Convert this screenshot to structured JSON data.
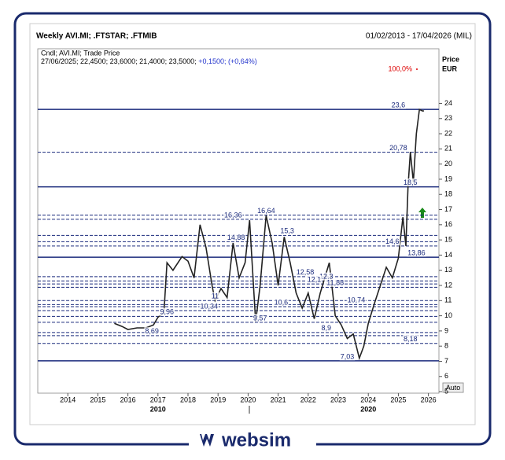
{
  "chart_data": {
    "type": "line",
    "title": "Weekly AVI.MI; .FTSTAR; .FTMIB",
    "date_range": "01/02/2013 - 17/04/2026 (MIL)",
    "legend_line1": "Cndl; AVI.MI; Trade Price",
    "legend_line2": "27/06/2025; 22,4500; 23,6000; 21,4000; 23,5000;",
    "legend_change": "+0,1500; (+0,64%)",
    "axis_label": "Price",
    "axis_unit": "EUR",
    "zoom_label": "100,0%",
    "auto_label": "Auto",
    "decade_labels": [
      {
        "value": 2017.0,
        "label": "2010"
      },
      {
        "value": 2024.0,
        "label": "2020"
      }
    ],
    "xlim": [
      2013,
      2026.35
    ],
    "xticks": [
      2014,
      2015,
      2016,
      2017,
      2018,
      2019,
      2020,
      2021,
      2022,
      2023,
      2024,
      2025,
      2026
    ],
    "ylim": [
      4.9,
      27.6
    ],
    "yticks": [
      5,
      6,
      7,
      8,
      9,
      10,
      11,
      12,
      13,
      14,
      15,
      16,
      17,
      18,
      19,
      20,
      21,
      22,
      23,
      24
    ],
    "series": [
      {
        "name": "AVI.MI",
        "color": "#222222",
        "x": [
          2015.55,
          2015.8,
          2016.0,
          2016.3,
          2016.6,
          2016.85,
          2017.0,
          2017.2,
          2017.3,
          2017.5,
          2017.8,
          2018.0,
          2018.2,
          2018.4,
          2018.6,
          2018.8,
          2018.9,
          2019.1,
          2019.3,
          2019.5,
          2019.7,
          2019.9,
          2020.05,
          2020.25,
          2020.4,
          2020.6,
          2020.8,
          2021.0,
          2021.2,
          2021.4,
          2021.6,
          2021.8,
          2022.0,
          2022.2,
          2022.4,
          2022.7,
          2022.9,
          2023.1,
          2023.3,
          2023.5,
          2023.7,
          2023.85,
          2024.0,
          2024.2,
          2024.4,
          2024.6,
          2024.8,
          2025.0,
          2025.15,
          2025.25,
          2025.32,
          2025.4,
          2025.5,
          2025.6,
          2025.7,
          2025.8,
          2025.85
        ],
        "values": [
          9.5,
          9.3,
          9.1,
          9.2,
          9.2,
          9.4,
          9.9,
          10.2,
          13.5,
          13.0,
          13.9,
          13.6,
          12.5,
          16.0,
          14.5,
          12.0,
          11.0,
          11.8,
          11.2,
          14.8,
          12.5,
          13.5,
          16.3,
          9.6,
          12.0,
          16.6,
          14.8,
          12.0,
          15.2,
          13.5,
          11.5,
          10.5,
          11.5,
          9.8,
          11.5,
          13.5,
          10.0,
          9.4,
          8.5,
          8.8,
          7.2,
          8.0,
          9.5,
          10.8,
          12.0,
          13.2,
          12.5,
          13.8,
          16.5,
          14.6,
          18.5,
          20.8,
          18.8,
          22.0,
          23.6,
          23.5,
          23.5
        ]
      }
    ],
    "levels": [
      {
        "value": 23.6,
        "label": "23,6",
        "style": "solid",
        "date": 2025.0
      },
      {
        "value": 20.78,
        "label": "20,78",
        "style": "dashed",
        "date": 2025.0
      },
      {
        "value": 18.5,
        "label": "18,5",
        "style": "solid",
        "date": 2025.4
      },
      {
        "value": 16.64,
        "label": "16,64",
        "style": "dashed",
        "date": 2020.6
      },
      {
        "value": 16.36,
        "label": "16,36",
        "style": "dashed",
        "date": 2019.5
      },
      {
        "value": 15.3,
        "label": "15,3",
        "style": "dashed",
        "date": 2021.3
      },
      {
        "value": 14.88,
        "label": "14,88",
        "style": "dashed",
        "date": 2019.6
      },
      {
        "value": 14.6,
        "label": "14,6",
        "style": "dashed",
        "date": 2024.8
      },
      {
        "value": 13.86,
        "label": "13,86",
        "style": "solid",
        "date": 2025.6
      },
      {
        "value": 12.58,
        "label": "12,58",
        "style": "dashed",
        "date": 2021.9
      },
      {
        "value": 12.3,
        "label": "12,3",
        "style": "dashed",
        "date": 2022.6
      },
      {
        "value": 12.1,
        "label": "12,1",
        "style": "dashed",
        "date": 2022.2
      },
      {
        "value": 11.88,
        "label": "11,88",
        "style": "dashed",
        "date": 2022.9
      },
      {
        "value": 11,
        "label": "11",
        "style": "dashed",
        "date": 2018.9
      },
      {
        "value": 10.74,
        "label": "10,74",
        "style": "dashed",
        "date": 2023.6
      },
      {
        "value": 10.6,
        "label": "10,6",
        "style": "dashed",
        "date": 2021.1
      },
      {
        "value": 10.34,
        "label": "10,34",
        "style": "dashed",
        "date": 2018.7
      },
      {
        "value": 9.96,
        "label": "9,96",
        "style": "dashed",
        "date": 2017.3
      },
      {
        "value": 9.57,
        "label": "9,57",
        "style": "dashed",
        "date": 2020.4
      },
      {
        "value": 8.9,
        "label": "8,9",
        "style": "dashed",
        "date": 2022.6
      },
      {
        "value": 8.69,
        "label": "8,69",
        "style": "dashed",
        "date": 2016.8
      },
      {
        "value": 8.18,
        "label": "8,18",
        "style": "dashed",
        "date": 2025.4
      },
      {
        "value": 7.03,
        "label": "7,03",
        "style": "solid",
        "date": 2023.3
      }
    ],
    "level_color": "#1a2a7c",
    "brand": "websim"
  }
}
